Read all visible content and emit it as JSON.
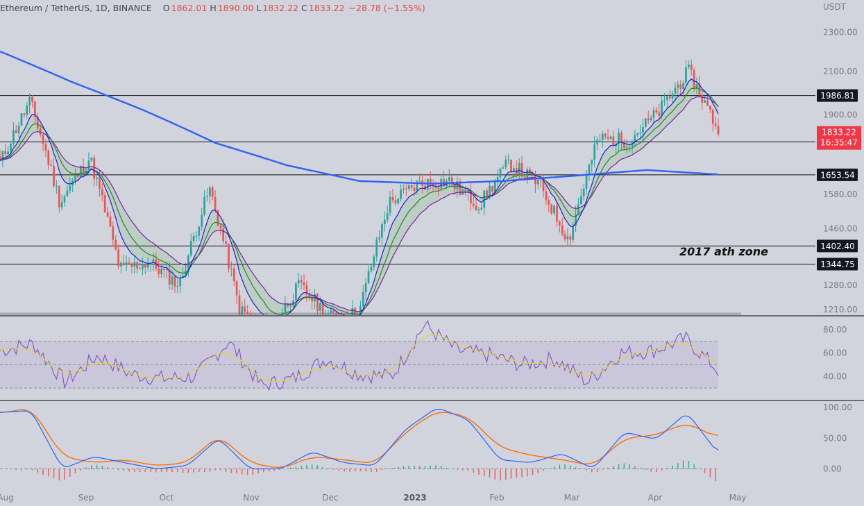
{
  "header": {
    "symbol": "Ethereum / TetherUS, 1D, BINANCE",
    "o_label": "O",
    "o": "1862.01",
    "h_label": "H",
    "h": "1890.00",
    "l_label": "L",
    "l": "1832.22",
    "c_label": "C",
    "c": "1833.22",
    "change": "−28.78 (−1.55%)"
  },
  "currency_label": "USDT",
  "annotation": "2017 ath zone",
  "price_label": {
    "price": "1833.22",
    "countdown": "16:35:47"
  },
  "colors": {
    "background": "#d1d4dc",
    "up": "#26a69a",
    "down": "#ef5350",
    "ma200": "#2f62f1",
    "ema_fast": "#1e1ee0",
    "ema_mid": "#2e7d32",
    "ema_slow": "#7b1fa2",
    "rsi": "#7e57c2",
    "rsi_ma": "#e6d23c",
    "stoch_k": "#2962ff",
    "stoch_d": "#ff6d00"
  },
  "chart_data": [
    {
      "type": "candlestick",
      "title": "Ethereum / TetherUS, 1D, BINANCE",
      "y_axis": {
        "ticks": [
          "2300.00",
          "2100.00",
          "1900.00",
          "1580.00",
          "1460.00",
          "1280.00",
          "1210.00"
        ],
        "log_scale": true,
        "ylim": [
          1195,
          2400
        ]
      },
      "x_axis": {
        "ticks": [
          "Aug",
          "Sep",
          "Oct",
          "Nov",
          "Dec",
          "2023",
          "Feb",
          "Mar",
          "Apr",
          "May"
        ]
      },
      "horizontal_levels": [
        {
          "value": 1986.81,
          "label": "1986.81"
        },
        {
          "value": 1784.7,
          "label": "1784.70"
        },
        {
          "value": 1653.54,
          "label": "1653.54"
        },
        {
          "value": 1402.4,
          "label": "1402.40"
        },
        {
          "value": 1344.75,
          "label": "1344.75"
        }
      ],
      "last_price": 1833.22,
      "approx_closes": [
        {
          "x": "Aug",
          "y": 1700
        },
        {
          "x": "Aug 14",
          "y": 1960
        },
        {
          "x": "Aug 28",
          "y": 1550
        },
        {
          "x": "Sep 8",
          "y": 1720
        },
        {
          "x": "Sep 20",
          "y": 1330
        },
        {
          "x": "Oct 5",
          "y": 1350
        },
        {
          "x": "Oct 20",
          "y": 1280
        },
        {
          "x": "Nov 3",
          "y": 1600
        },
        {
          "x": "Nov 9",
          "y": 1210
        },
        {
          "x": "Nov 21",
          "y": 1150
        },
        {
          "x": "Dec 5",
          "y": 1280
        },
        {
          "x": "Dec 17",
          "y": 1190
        },
        {
          "x": "2023",
          "y": 1200
        },
        {
          "x": "Jan 14",
          "y": 1550
        },
        {
          "x": "Jan 21",
          "y": 1620
        },
        {
          "x": "Feb 1",
          "y": 1630
        },
        {
          "x": "Feb 10",
          "y": 1540
        },
        {
          "x": "Feb 18",
          "y": 1700
        },
        {
          "x": "Mar 2",
          "y": 1620
        },
        {
          "x": "Mar 10",
          "y": 1420
        },
        {
          "x": "Mar 18",
          "y": 1800
        },
        {
          "x": "Mar 30",
          "y": 1790
        },
        {
          "x": "Apr 10",
          "y": 1910
        },
        {
          "x": "Apr 16",
          "y": 2100
        },
        {
          "x": "Apr 22",
          "y": 1833.22
        }
      ]
    },
    {
      "type": "line",
      "name": "RSI",
      "y_axis": {
        "ticks": [
          "80.00",
          "60.00",
          "40.00"
        ],
        "ylim": [
          20,
          90
        ]
      },
      "bands": [
        70,
        50,
        30
      ],
      "approx_values": [
        62,
        68,
        35,
        58,
        42,
        38,
        40,
        70,
        32,
        38,
        55,
        42,
        40,
        84,
        62,
        58,
        50,
        55,
        35,
        60,
        62,
        72,
        45
      ]
    },
    {
      "type": "line",
      "name": "Stochastic RSI",
      "y_axis": {
        "ticks": [
          "100.00",
          "50.00",
          "0.00"
        ],
        "ylim": [
          -30,
          108
        ]
      },
      "approx_k": [
        92,
        95,
        0,
        20,
        10,
        0,
        5,
        50,
        0,
        0,
        28,
        10,
        5,
        65,
        100,
        80,
        15,
        10,
        25,
        0,
        60,
        48,
        92,
        25
      ],
      "approx_d": [
        90,
        100,
        20,
        10,
        15,
        5,
        10,
        55,
        10,
        0,
        20,
        15,
        8,
        60,
        95,
        85,
        35,
        22,
        15,
        5,
        50,
        55,
        75,
        50
      ]
    }
  ]
}
